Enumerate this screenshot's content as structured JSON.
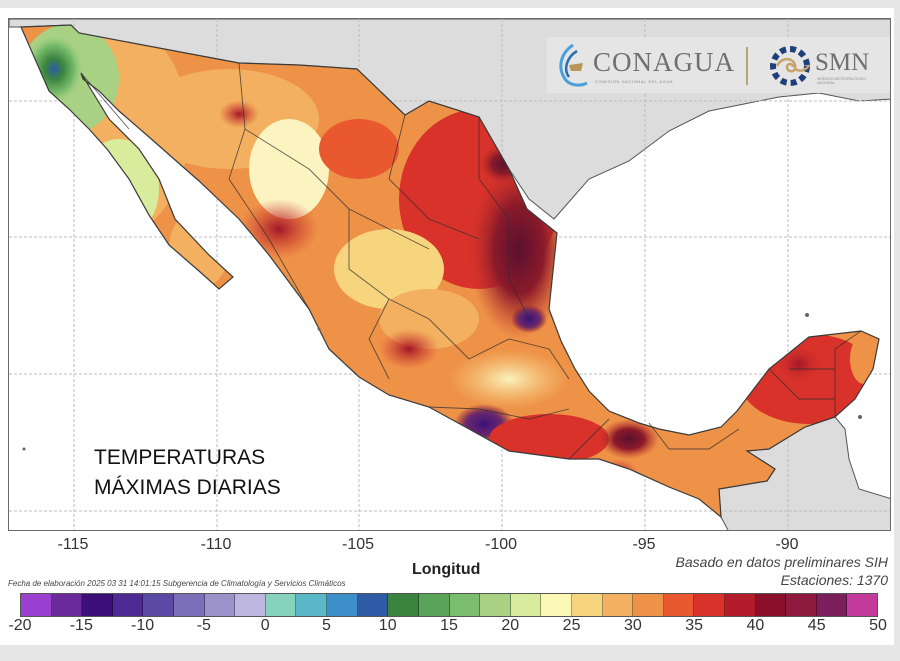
{
  "figure": {
    "overlay_title_line1": "TEMPERATURAS",
    "overlay_title_line2": "MÁXIMAS DIARIAS",
    "x_axis_label": "Longitud",
    "x_ticks": [
      "-115",
      "-110",
      "-105",
      "-100",
      "-95",
      "-90"
    ],
    "credit": "Fecha de elaboración 2025 03 31 14:01:15 Subgerencia de Climatología y Servicios Climáticos",
    "note_source": "Basado en datos preliminares SIH",
    "note_stations": "Estaciones:  1370"
  },
  "logos": {
    "conagua": "CONAGUA",
    "conagua_sub": "COMISIÓN NACIONAL DEL AGUA",
    "smn": "SMN",
    "smn_sub": "SERVICIO METEOROLÓGICO NACIONAL"
  },
  "colorbar": {
    "ticks": [
      "-20",
      "-15",
      "-10",
      "-5",
      "0",
      "5",
      "10",
      "15",
      "20",
      "25",
      "30",
      "35",
      "40",
      "45",
      "50"
    ],
    "range": [
      -20,
      50
    ],
    "step": 2.5,
    "colors": [
      "#9a3fcf",
      "#6a2a9c",
      "#3d1079",
      "#4e2a95",
      "#5a4aa6",
      "#7c6fb9",
      "#9b92cc",
      "#bdb7e0",
      "#86d2bd",
      "#5ab8c9",
      "#3c8fc8",
      "#2e5aa6",
      "#3a8440",
      "#5aa45a",
      "#7bbd6e",
      "#a8d183",
      "#d9eb9c",
      "#fbf7b5",
      "#f7d47e",
      "#f2b060",
      "#ee9248",
      "#e9582f",
      "#d8322a",
      "#b41c2c",
      "#8a0f2a",
      "#8f1a3f",
      "#7a1e5c",
      "#c43a9c"
    ]
  },
  "colors": {
    "hot": "#b41c2c",
    "very_hot": "#8a0f2a",
    "warm": "#ee9248",
    "mild": "#f7d47e",
    "cool": "#7bbd6e",
    "land_outside": "#dcdcdc"
  }
}
